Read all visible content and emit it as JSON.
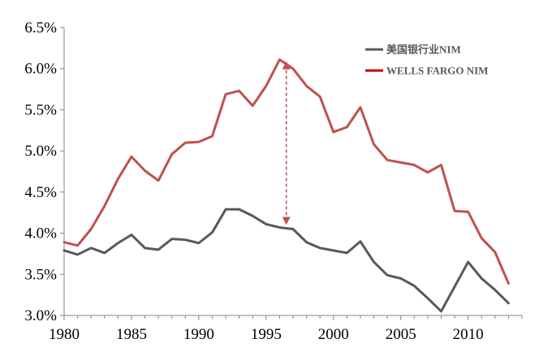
{
  "chart_data": {
    "type": "line",
    "title": "",
    "xlabel": "",
    "ylabel": "",
    "xlim": [
      1980,
      2014
    ],
    "ylim": [
      3.0,
      6.5
    ],
    "x_ticks": [
      1980,
      1985,
      1990,
      1995,
      2000,
      2005,
      2010
    ],
    "x_tick_labels": [
      "1980",
      "1985",
      "1990",
      "1995",
      "2000",
      "2005",
      "2010"
    ],
    "y_ticks": [
      3.0,
      3.5,
      4.0,
      4.5,
      5.0,
      5.5,
      6.0,
      6.5
    ],
    "y_tick_labels": [
      "3.0%",
      "3.5%",
      "4.0%",
      "4.5%",
      "5.0%",
      "5.5%",
      "6.0%",
      "6.5%"
    ],
    "grid": false,
    "legend_position": "top-right",
    "x": [
      1980,
      1981,
      1982,
      1983,
      1984,
      1985,
      1986,
      1987,
      1988,
      1989,
      1990,
      1991,
      1992,
      1993,
      1994,
      1995,
      1996,
      1997,
      1998,
      1999,
      2000,
      2001,
      2002,
      2003,
      2004,
      2005,
      2006,
      2007,
      2008,
      2009,
      2010,
      2011,
      2012,
      2013
    ],
    "series": [
      {
        "name": "美国银行业NIM",
        "color": "#595959",
        "values": [
          3.79,
          3.74,
          3.82,
          3.76,
          3.88,
          3.98,
          3.82,
          3.8,
          3.93,
          3.92,
          3.88,
          4.01,
          4.29,
          4.29,
          4.21,
          4.11,
          4.07,
          4.05,
          3.89,
          3.82,
          3.79,
          3.76,
          3.9,
          3.65,
          3.49,
          3.45,
          3.36,
          3.21,
          3.05,
          3.35,
          3.65,
          3.45,
          3.31,
          3.15
        ]
      },
      {
        "name": "WELLS FARGO NIM",
        "color": "#c0504d",
        "legend_color": "#c00000",
        "values": [
          3.89,
          3.85,
          4.05,
          4.33,
          4.66,
          4.93,
          4.76,
          4.64,
          4.96,
          5.1,
          5.11,
          5.18,
          5.69,
          5.73,
          5.55,
          5.79,
          6.11,
          6.0,
          5.79,
          5.66,
          5.23,
          5.29,
          5.53,
          5.08,
          4.89,
          4.86,
          4.83,
          4.74,
          4.83,
          4.27,
          4.26,
          3.94,
          3.77,
          3.39
        ]
      }
    ],
    "annotations": [
      {
        "type": "double-arrow",
        "style": "dashed",
        "color": "#c0504d",
        "x": 1996.5,
        "y_from": 4.15,
        "y_to": 6.04
      }
    ]
  }
}
